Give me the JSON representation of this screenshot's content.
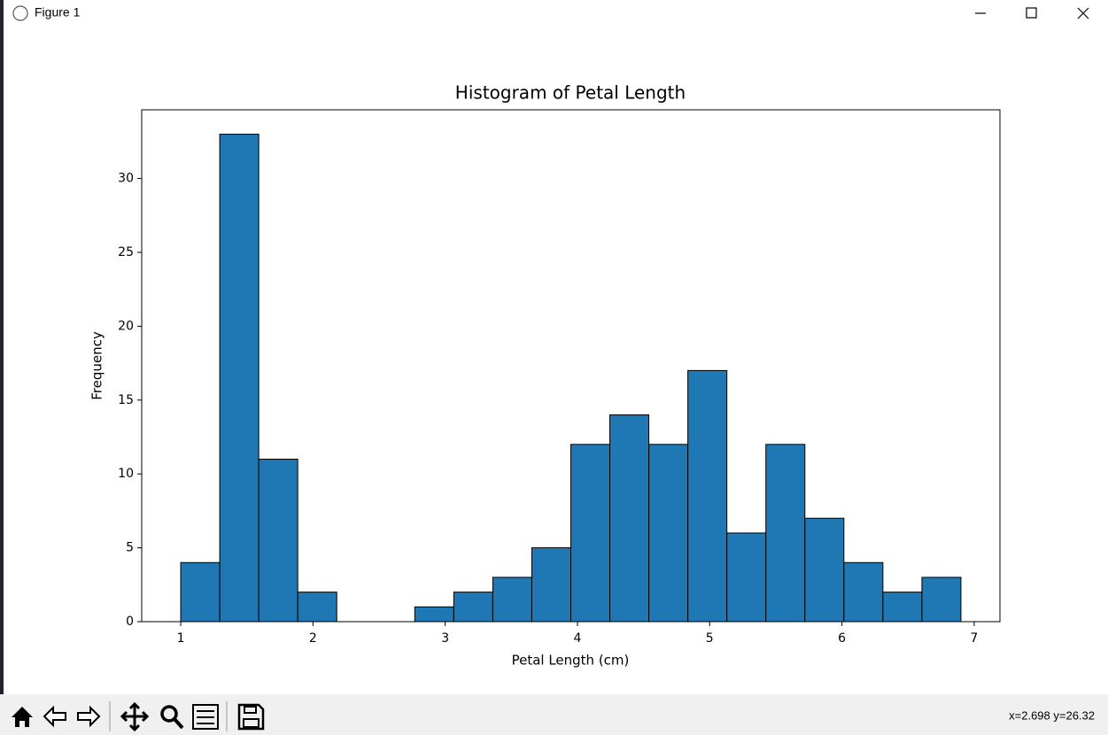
{
  "window": {
    "title": "Figure 1",
    "status": "x=2.698 y=26.32"
  },
  "chart_data": {
    "type": "histogram",
    "title": "Histogram of Petal Length",
    "x_label": "Petal Length (cm)",
    "y_label": "Frequency",
    "bins": [
      1.0,
      1.295,
      1.59,
      1.885,
      2.18,
      2.475,
      2.77,
      3.065,
      3.36,
      3.655,
      3.95,
      4.245,
      4.54,
      4.835,
      5.13,
      5.425,
      5.72,
      6.015,
      6.31,
      6.605,
      6.9
    ],
    "counts": [
      4,
      33,
      11,
      2,
      0,
      0,
      1,
      2,
      3,
      5,
      12,
      14,
      12,
      17,
      6,
      12,
      7,
      4,
      2,
      3
    ],
    "color": "#1f77b4",
    "edgecolor": "#000000",
    "xlim": [
      0.705,
      7.195
    ],
    "xticks": [
      1,
      2,
      3,
      4,
      5,
      6,
      7
    ],
    "ylim": [
      0,
      34.65
    ],
    "yticks": [
      0,
      5,
      10,
      15,
      20,
      25,
      30
    ],
    "grid": false
  }
}
